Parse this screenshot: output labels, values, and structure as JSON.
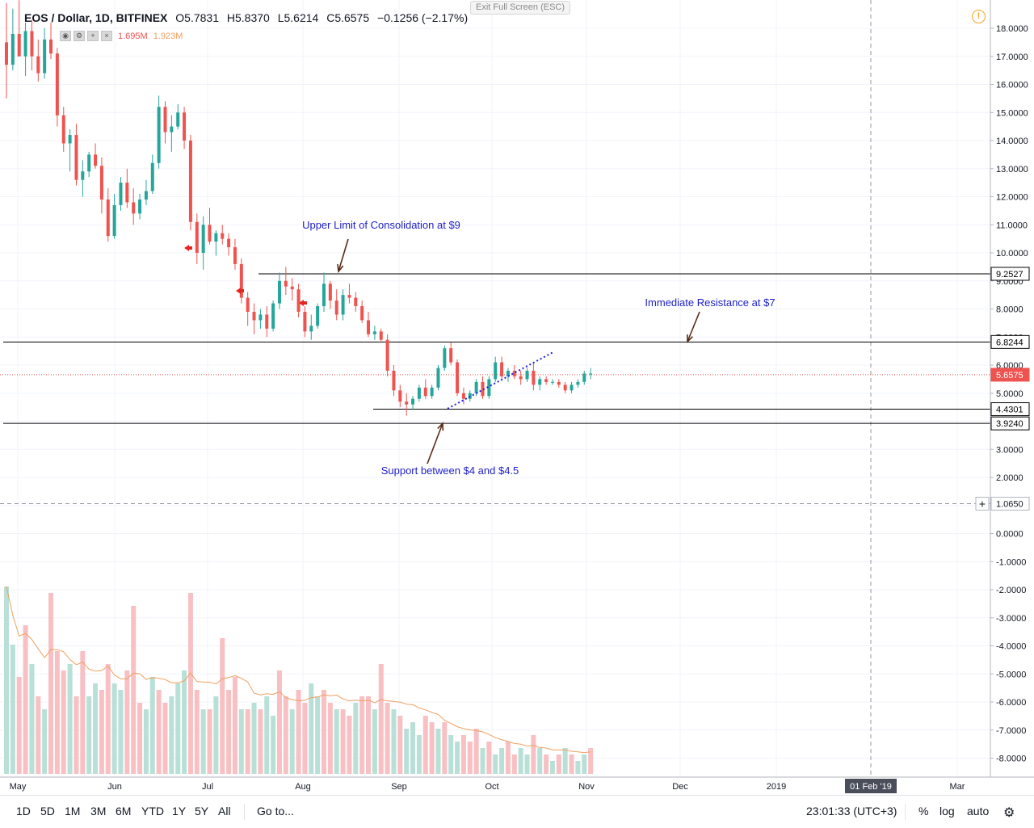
{
  "header": {
    "symbol": "EOS / Dollar, 1D, BITFINEX",
    "open": "O5.7831",
    "high": "H5.8370",
    "low": "L5.6214",
    "close": "C5.6575",
    "change": "−0.1256 (−2.17%)",
    "vol1": "1.695M",
    "vol2": "1.923M",
    "exit_fullscreen": "Exit Full Screen (ESC)"
  },
  "toolbar": {
    "ranges": [
      "1D",
      "5D",
      "1M",
      "3M",
      "6M",
      "YTD",
      "1Y",
      "5Y",
      "All"
    ],
    "goto": "Go to...",
    "clock": "23:01:33 (UTC+3)",
    "percent": "%",
    "log": "log",
    "auto": "auto"
  },
  "colors": {
    "up": "#26a69a",
    "down": "#ef5350",
    "vol_up": "#b9e0d7",
    "vol_down": "#f8c0c3",
    "annotation": "#1e1ec8",
    "arrow": "#5a2b18",
    "ma": "#f0a060"
  },
  "chart_data": {
    "type": "candlestick",
    "x_ticks": [
      "May",
      "Jun",
      "Jul",
      "Aug",
      "Sep",
      "Oct",
      "Nov",
      "Dec",
      "2019",
      "Mar"
    ],
    "x_highlight": "01 Feb '19",
    "y_ticks": [
      18,
      17,
      16,
      15,
      14,
      13,
      12,
      11,
      10,
      9,
      8,
      7,
      6,
      5,
      4,
      3,
      2,
      1,
      0,
      -1,
      -2,
      -3,
      -4,
      -5,
      -6,
      -7,
      -8
    ],
    "y_tick_labels": [
      "18.0000",
      "17.0000",
      "16.0000",
      "15.0000",
      "14.0000",
      "13.0000",
      "12.0000",
      "11.0000",
      "10.0000",
      "9.0000",
      "8.0000",
      "7.0000",
      "6.0000",
      "5.0000",
      "4.0000",
      "3.0000",
      "2.0000",
      "1.0000",
      "0.0000",
      "-1.0000",
      "-2.0000",
      "-3.0000",
      "-4.0000",
      "-5.0000",
      "-6.0000",
      "-7.0000",
      "-8.0000"
    ],
    "price_labels": [
      {
        "value": 9.2527,
        "label": "9.2527",
        "style": "line"
      },
      {
        "value": 6.8244,
        "label": "6.8244",
        "style": "line"
      },
      {
        "value": 5.6575,
        "label": "5.6575",
        "style": "last"
      },
      {
        "value": 4.4301,
        "label": "4.4301",
        "style": "line"
      },
      {
        "value": 3.924,
        "label": "3.9240",
        "style": "line"
      },
      {
        "value": 1.065,
        "label": "1.0650",
        "style": "cursor"
      }
    ],
    "annotations": [
      {
        "text": "Upper Limit of Consolidation at $9",
        "level": 9.2527
      },
      {
        "text": "Immediate Resistance at $7",
        "level": 6.8244
      },
      {
        "text": "Support between $4 and $4.5",
        "level": 4.4301
      }
    ],
    "trendline": {
      "from": {
        "date": "Sep 17",
        "value": 4.45
      },
      "to": {
        "date": "Oct 19",
        "value": 6.45
      }
    },
    "candles_approx": [
      [
        17.5,
        18.9,
        15.5,
        16.7
      ],
      [
        16.7,
        18.7,
        16.5,
        17.8
      ],
      [
        17.8,
        19.0,
        17.0,
        17.0
      ],
      [
        17.0,
        18.2,
        16.3,
        17.9
      ],
      [
        17.9,
        18.3,
        16.5,
        17.0
      ],
      [
        17.0,
        17.6,
        16.1,
        16.4
      ],
      [
        16.4,
        18.0,
        16.2,
        17.6
      ],
      [
        17.6,
        18.2,
        16.9,
        17.1
      ],
      [
        17.1,
        17.3,
        14.5,
        14.9
      ],
      [
        14.9,
        15.2,
        13.6,
        13.9
      ],
      [
        13.9,
        14.4,
        12.9,
        14.2
      ],
      [
        14.2,
        14.6,
        12.4,
        12.6
      ],
      [
        12.6,
        13.3,
        12.0,
        12.9
      ],
      [
        12.9,
        13.6,
        12.7,
        13.5
      ],
      [
        13.5,
        13.9,
        13.0,
        13.1
      ],
      [
        13.1,
        13.4,
        11.4,
        11.9
      ],
      [
        11.9,
        12.3,
        10.4,
        10.6
      ],
      [
        10.6,
        12.1,
        10.5,
        11.7
      ],
      [
        11.7,
        12.7,
        11.5,
        12.5
      ],
      [
        12.5,
        13.0,
        11.6,
        11.8
      ],
      [
        11.8,
        12.3,
        11.0,
        11.4
      ],
      [
        11.4,
        12.1,
        11.2,
        11.9
      ],
      [
        11.9,
        12.6,
        11.7,
        12.2
      ],
      [
        12.2,
        13.5,
        12.1,
        13.2
      ],
      [
        13.2,
        15.6,
        13.0,
        15.2
      ],
      [
        15.2,
        15.4,
        13.9,
        14.3
      ],
      [
        14.3,
        14.9,
        13.6,
        14.5
      ],
      [
        14.5,
        15.3,
        14.4,
        15.0
      ],
      [
        15.0,
        15.2,
        13.7,
        14.0
      ],
      [
        14.0,
        14.2,
        10.8,
        11.1
      ],
      [
        11.1,
        11.4,
        9.6,
        10.0
      ],
      [
        10.0,
        11.3,
        9.4,
        11.0
      ],
      [
        11.0,
        11.6,
        10.3,
        10.4
      ],
      [
        10.4,
        10.8,
        9.9,
        10.7
      ],
      [
        10.7,
        11.0,
        10.3,
        10.5
      ],
      [
        10.5,
        10.7,
        9.9,
        10.2
      ],
      [
        10.2,
        10.5,
        9.4,
        9.6
      ],
      [
        9.6,
        9.8,
        8.2,
        8.4
      ],
      [
        8.4,
        8.6,
        7.4,
        7.9
      ],
      [
        7.9,
        8.2,
        7.1,
        7.6
      ],
      [
        7.6,
        8.0,
        7.3,
        7.8
      ],
      [
        7.8,
        8.1,
        7.0,
        7.3
      ],
      [
        7.3,
        8.3,
        7.2,
        8.2
      ],
      [
        8.2,
        9.3,
        8.0,
        9.0
      ],
      [
        9.0,
        9.5,
        8.5,
        8.8
      ],
      [
        8.8,
        9.1,
        8.3,
        8.7
      ],
      [
        8.7,
        8.9,
        7.7,
        7.9
      ],
      [
        7.9,
        8.1,
        7.0,
        7.2
      ],
      [
        7.2,
        7.8,
        6.9,
        7.4
      ],
      [
        7.4,
        8.2,
        7.3,
        8.1
      ],
      [
        8.1,
        9.3,
        7.9,
        8.9
      ],
      [
        8.9,
        9.0,
        8.0,
        8.3
      ],
      [
        8.3,
        8.7,
        7.6,
        7.8
      ],
      [
        7.8,
        8.7,
        7.6,
        8.5
      ],
      [
        8.5,
        8.9,
        8.2,
        8.4
      ],
      [
        8.4,
        8.6,
        7.9,
        8.1
      ],
      [
        8.1,
        8.3,
        7.5,
        7.6
      ],
      [
        7.6,
        7.9,
        7.0,
        7.1
      ],
      [
        7.1,
        7.4,
        6.9,
        7.2
      ],
      [
        7.2,
        7.3,
        6.8,
        6.9
      ],
      [
        6.9,
        7.1,
        5.6,
        5.8
      ],
      [
        5.8,
        6.0,
        4.9,
        5.1
      ],
      [
        5.1,
        5.3,
        4.5,
        4.7
      ],
      [
        4.7,
        5.0,
        4.2,
        4.6
      ],
      [
        4.6,
        4.9,
        4.4,
        4.8
      ],
      [
        4.8,
        5.3,
        4.7,
        5.2
      ],
      [
        5.2,
        5.5,
        4.8,
        4.9
      ],
      [
        4.9,
        5.3,
        4.8,
        5.2
      ],
      [
        5.2,
        6.0,
        5.1,
        5.9
      ],
      [
        5.9,
        6.7,
        5.8,
        6.6
      ],
      [
        6.6,
        6.8,
        6.0,
        6.1
      ],
      [
        6.1,
        6.2,
        4.9,
        5.0
      ],
      [
        5.0,
        5.2,
        4.6,
        4.8
      ],
      [
        4.8,
        5.1,
        4.7,
        5.0
      ],
      [
        5.0,
        5.5,
        4.9,
        5.4
      ],
      [
        5.4,
        5.6,
        4.8,
        4.9
      ],
      [
        4.9,
        5.6,
        4.8,
        5.5
      ],
      [
        5.5,
        6.3,
        5.4,
        6.1
      ],
      [
        6.1,
        6.3,
        5.5,
        5.6
      ],
      [
        5.6,
        5.9,
        5.4,
        5.8
      ],
      [
        5.8,
        6.0,
        5.5,
        5.6
      ],
      [
        5.6,
        5.8,
        5.3,
        5.5
      ],
      [
        5.5,
        5.9,
        5.4,
        5.8
      ],
      [
        5.8,
        6.1,
        5.1,
        5.3
      ],
      [
        5.3,
        5.6,
        5.1,
        5.5
      ],
      [
        5.5,
        5.6,
        5.3,
        5.4
      ],
      [
        5.4,
        5.5,
        5.3,
        5.4
      ],
      [
        5.4,
        5.5,
        5.2,
        5.3
      ],
      [
        5.3,
        5.4,
        5.0,
        5.1
      ],
      [
        5.1,
        5.4,
        5.0,
        5.3
      ],
      [
        5.3,
        5.5,
        5.2,
        5.4
      ],
      [
        5.4,
        5.8,
        5.3,
        5.7
      ],
      [
        5.7,
        5.9,
        5.5,
        5.7
      ]
    ],
    "volume_approx": [
      [
        2.9,
        1
      ],
      [
        2.0,
        1
      ],
      [
        1.5,
        0
      ],
      [
        2.3,
        0
      ],
      [
        1.7,
        1
      ],
      [
        1.2,
        0
      ],
      [
        1.0,
        1
      ],
      [
        2.8,
        0
      ],
      [
        1.9,
        0
      ],
      [
        1.6,
        0
      ],
      [
        1.7,
        1
      ],
      [
        1.2,
        0
      ],
      [
        1.9,
        0
      ],
      [
        1.2,
        1
      ],
      [
        1.4,
        1
      ],
      [
        1.3,
        0
      ],
      [
        1.7,
        0
      ],
      [
        1.4,
        1
      ],
      [
        1.3,
        1
      ],
      [
        1.6,
        0
      ],
      [
        2.6,
        0
      ],
      [
        1.1,
        0
      ],
      [
        1.0,
        1
      ],
      [
        1.5,
        1
      ],
      [
        1.3,
        0
      ],
      [
        1.1,
        0
      ],
      [
        1.2,
        1
      ],
      [
        1.4,
        1
      ],
      [
        1.6,
        1
      ],
      [
        2.8,
        0
      ],
      [
        1.3,
        0
      ],
      [
        1.0,
        1
      ],
      [
        1.0,
        0
      ],
      [
        1.2,
        1
      ],
      [
        2.1,
        0
      ],
      [
        1.3,
        0
      ],
      [
        1.5,
        0
      ],
      [
        1.0,
        1
      ],
      [
        1.0,
        0
      ],
      [
        1.1,
        1
      ],
      [
        1.0,
        0
      ],
      [
        1.2,
        1
      ],
      [
        0.9,
        1
      ],
      [
        1.6,
        0
      ],
      [
        1.2,
        0
      ],
      [
        1.0,
        1
      ],
      [
        1.3,
        0
      ],
      [
        1.1,
        0
      ],
      [
        1.4,
        1
      ],
      [
        1.2,
        1
      ],
      [
        1.3,
        0
      ],
      [
        1.1,
        0
      ],
      [
        1.0,
        1
      ],
      [
        1.0,
        0
      ],
      [
        0.9,
        0
      ],
      [
        1.1,
        1
      ],
      [
        1.2,
        0
      ],
      [
        1.2,
        0
      ],
      [
        1.0,
        1
      ],
      [
        1.7,
        0
      ],
      [
        1.1,
        0
      ],
      [
        1.0,
        1
      ],
      [
        0.9,
        0
      ],
      [
        0.7,
        1
      ],
      [
        0.8,
        1
      ],
      [
        0.6,
        1
      ],
      [
        0.9,
        0
      ],
      [
        0.8,
        0
      ],
      [
        0.7,
        1
      ],
      [
        0.8,
        0
      ],
      [
        0.6,
        1
      ],
      [
        0.5,
        1
      ],
      [
        0.6,
        0
      ],
      [
        0.5,
        0
      ],
      [
        0.7,
        0
      ],
      [
        0.4,
        1
      ],
      [
        0.5,
        0
      ],
      [
        0.3,
        1
      ],
      [
        0.4,
        1
      ],
      [
        0.5,
        0
      ],
      [
        0.3,
        0
      ],
      [
        0.4,
        1
      ],
      [
        0.3,
        1
      ],
      [
        0.6,
        0
      ],
      [
        0.4,
        1
      ],
      [
        0.3,
        0
      ],
      [
        0.2,
        1
      ],
      [
        0.3,
        0
      ],
      [
        0.4,
        1
      ],
      [
        0.3,
        0
      ],
      [
        0.2,
        1
      ],
      [
        0.3,
        1
      ],
      [
        0.4,
        0
      ]
    ]
  }
}
